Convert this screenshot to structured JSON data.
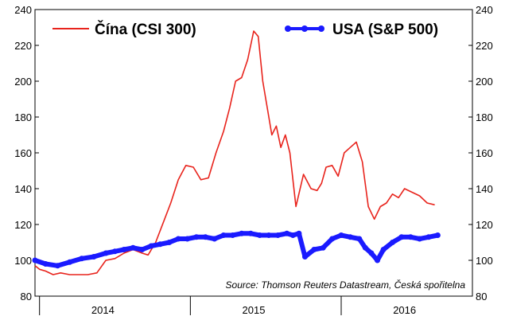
{
  "chart_data": {
    "type": "line",
    "title": "",
    "xlabel": "",
    "ylabel": "",
    "x_tick_labels": [
      "2014",
      "2015",
      "2016"
    ],
    "x_tick_values": [
      2014.0,
      2015.0,
      2016.0
    ],
    "xlim": [
      2013.55,
      2016.45
    ],
    "ylim": [
      80,
      240
    ],
    "y_ticks": [
      80,
      100,
      120,
      140,
      160,
      180,
      200,
      220,
      240
    ],
    "y_tick_labels": [
      "80",
      "100",
      "120",
      "140",
      "160",
      "180",
      "200",
      "220",
      "240"
    ],
    "grid": false,
    "legend_position": "top",
    "source": "Source: Thomson Reuters Datastream, Česká spořitelna",
    "series": [
      {
        "name": "Čína (CSI 300)",
        "color": "#e8231c",
        "marker": "none",
        "x": [
          2013.55,
          2013.58,
          2013.62,
          2013.67,
          2013.72,
          2013.78,
          2013.84,
          2013.9,
          2013.96,
          2014.02,
          2014.08,
          2014.14,
          2014.2,
          2014.26,
          2014.3,
          2014.35,
          2014.4,
          2014.45,
          2014.5,
          2014.55,
          2014.6,
          2014.65,
          2014.7,
          2014.75,
          2014.8,
          2014.84,
          2014.88,
          2014.92,
          2014.96,
          2015.0,
          2015.03,
          2015.06,
          2015.09,
          2015.12,
          2015.15,
          2015.18,
          2015.21,
          2015.24,
          2015.28,
          2015.33,
          2015.38,
          2015.42,
          2015.45,
          2015.48,
          2015.52,
          2015.56,
          2015.6,
          2015.64,
          2015.68,
          2015.72,
          2015.76,
          2015.8,
          2015.84,
          2015.88,
          2015.92,
          2015.96,
          2016.0,
          2016.05,
          2016.1,
          2016.15,
          2016.2
        ],
        "values": [
          97,
          95,
          94,
          92,
          93,
          92,
          92,
          92,
          93,
          100,
          101,
          104,
          106,
          104,
          103,
          110,
          121,
          132,
          145,
          153,
          152,
          145,
          146,
          160,
          172,
          185,
          200,
          202,
          212,
          228,
          225,
          200,
          185,
          170,
          175,
          163,
          170,
          160,
          130,
          148,
          140,
          139,
          143,
          152,
          153,
          147,
          160,
          163,
          166,
          155,
          130,
          123,
          130,
          132,
          137,
          135,
          140,
          138,
          136,
          132,
          131
        ]
      },
      {
        "name": "USA (S&P 500)",
        "color": "#1a1aff",
        "marker": "dot",
        "x": [
          2013.55,
          2013.62,
          2013.7,
          2013.78,
          2013.86,
          2013.94,
          2014.02,
          2014.08,
          2014.14,
          2014.2,
          2014.26,
          2014.32,
          2014.38,
          2014.44,
          2014.5,
          2014.56,
          2014.62,
          2014.68,
          2014.74,
          2014.8,
          2014.86,
          2014.92,
          2014.98,
          2015.04,
          2015.1,
          2015.16,
          2015.22,
          2015.26,
          2015.3,
          2015.34,
          2015.4,
          2015.46,
          2015.52,
          2015.58,
          2015.64,
          2015.7,
          2015.74,
          2015.78,
          2015.82,
          2015.86,
          2015.92,
          2015.98,
          2016.04,
          2016.1,
          2016.16,
          2016.22
        ],
        "values": [
          100,
          98,
          97,
          99,
          101,
          102,
          104,
          105,
          106,
          107,
          106,
          108,
          109,
          110,
          112,
          112,
          113,
          113,
          112,
          114,
          114,
          115,
          115,
          114,
          114,
          114,
          115,
          114,
          115,
          102,
          106,
          107,
          112,
          114,
          113,
          112,
          107,
          104,
          100,
          106,
          110,
          113,
          113,
          112,
          113,
          114
        ]
      }
    ]
  }
}
